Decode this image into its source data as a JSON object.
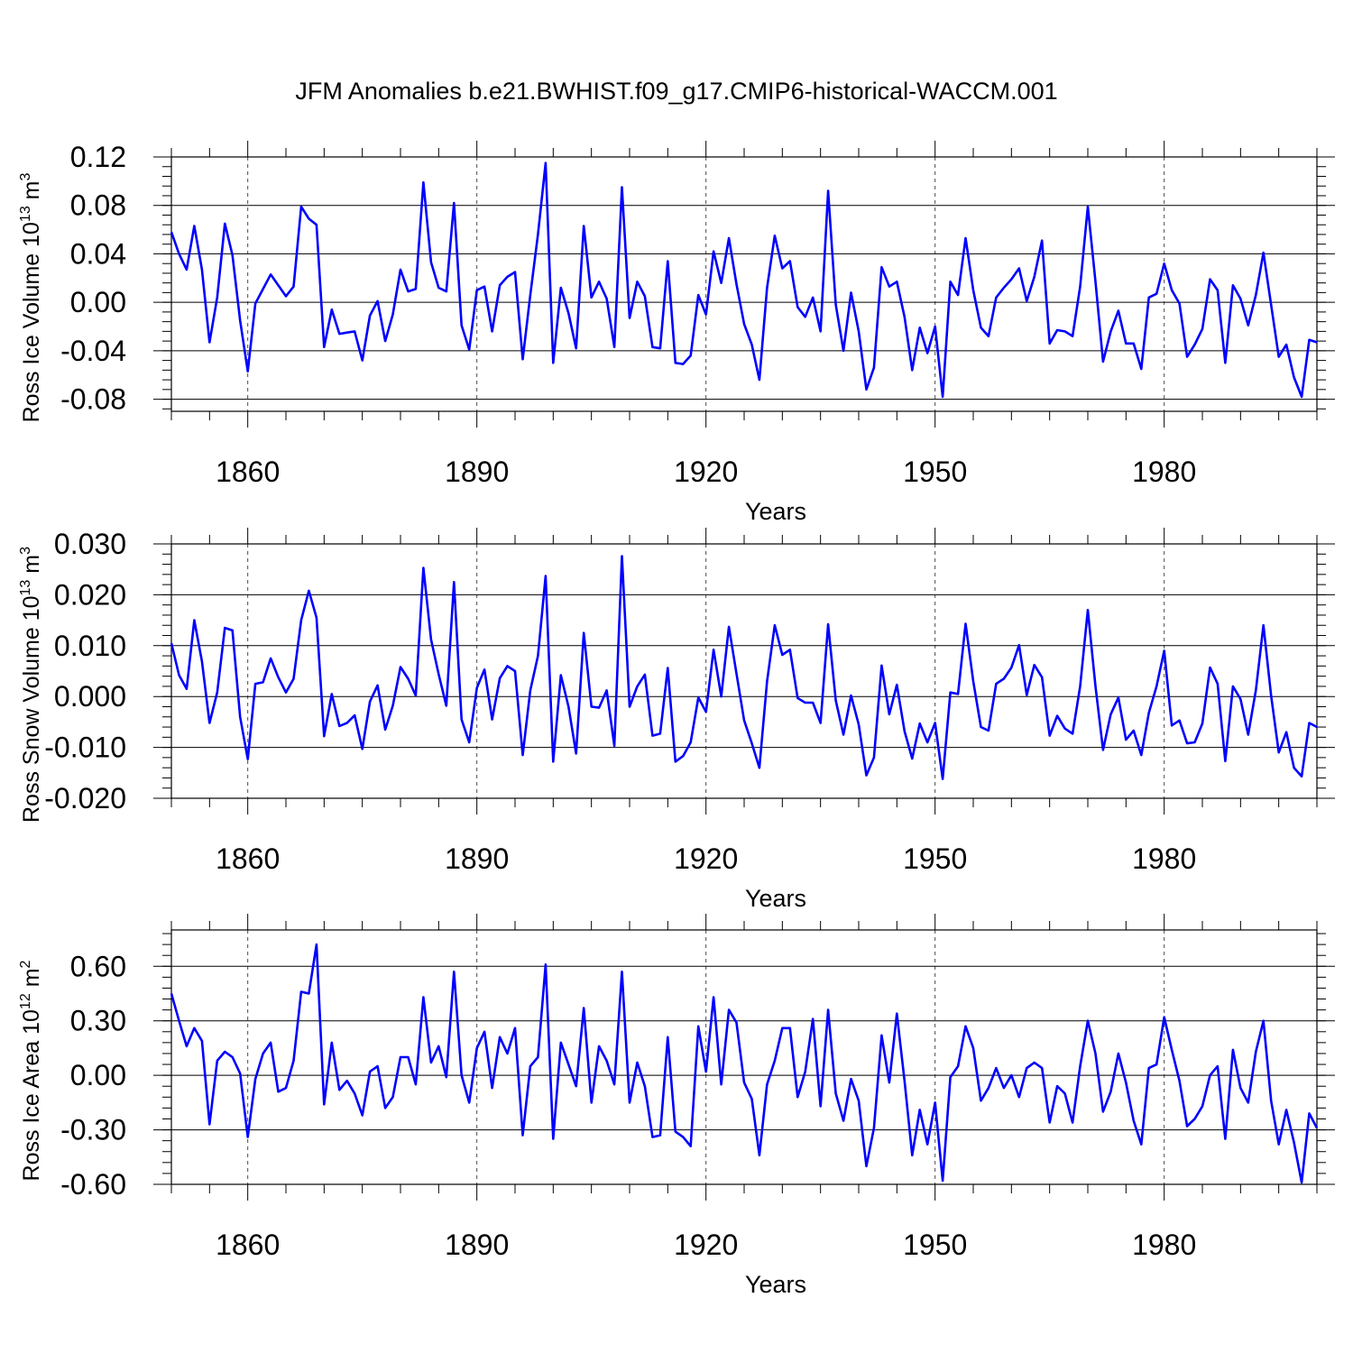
{
  "title": "JFM Anomalies b.e21.BWHIST.f09_g17.CMIP6-historical-WACCM.001",
  "colors": {
    "line": "#0000ff",
    "axis": "#000000",
    "grid": "#000000"
  },
  "chart_data": [
    {
      "type": "line",
      "name": "ice-volume",
      "ylabel_main": "Ross Ice Volume 10",
      "ylabel_exp": "13",
      "ylabel_unit": " m",
      "ylabel_unit_exp": "3",
      "xlabel": "Years",
      "xlim": [
        1850,
        2000
      ],
      "ylim": [
        -0.09,
        0.12
      ],
      "yticks": [
        -0.08,
        -0.04,
        0.0,
        0.04,
        0.08,
        0.12
      ],
      "ytick_labels": [
        "-0.08",
        "-0.04",
        "0.00",
        "0.04",
        "0.08",
        "0.12"
      ],
      "yminor_step": 0.008,
      "xticks": [
        1860,
        1890,
        1920,
        1950,
        1980
      ],
      "xtick_labels": [
        "1860",
        "1890",
        "1920",
        "1950",
        "1980"
      ],
      "start_year": 1850,
      "values": [
        0.058,
        0.04,
        0.027,
        0.063,
        0.027,
        -0.033,
        0.004,
        0.065,
        0.039,
        -0.015,
        -0.057,
        -0.001,
        0.011,
        0.023,
        0.014,
        0.005,
        0.013,
        0.079,
        0.069,
        0.064,
        -0.037,
        -0.006,
        -0.026,
        -0.025,
        -0.024,
        -0.048,
        -0.011,
        0.001,
        -0.032,
        -0.01,
        0.027,
        0.009,
        0.011,
        0.099,
        0.033,
        0.012,
        0.009,
        0.082,
        -0.019,
        -0.039,
        0.01,
        0.013,
        -0.024,
        0.014,
        0.021,
        0.025,
        -0.047,
        0.006,
        0.056,
        0.115,
        -0.05,
        0.012,
        -0.009,
        -0.038,
        0.063,
        0.004,
        0.017,
        0.003,
        -0.037,
        0.095,
        -0.013,
        0.017,
        0.005,
        -0.037,
        -0.038,
        0.034,
        -0.05,
        -0.051,
        -0.044,
        0.006,
        -0.01,
        0.042,
        0.016,
        0.053,
        0.015,
        -0.018,
        -0.035,
        -0.064,
        0.012,
        0.055,
        0.028,
        0.034,
        -0.004,
        -0.012,
        0.004,
        -0.024,
        0.092,
        -0.002,
        -0.04,
        0.008,
        -0.024,
        -0.072,
        -0.054,
        0.029,
        0.013,
        0.017,
        -0.012,
        -0.056,
        -0.021,
        -0.042,
        -0.02,
        -0.078,
        0.017,
        0.006,
        0.053,
        0.01,
        -0.021,
        -0.028,
        0.004,
        0.012,
        0.019,
        0.028,
        0.001,
        0.021,
        0.051,
        -0.034,
        -0.023,
        -0.024,
        -0.028,
        0.013,
        0.079,
        0.017,
        -0.049,
        -0.024,
        -0.007,
        -0.034,
        -0.034,
        -0.055,
        0.004,
        0.007,
        0.032,
        0.01,
        -0.001,
        -0.045,
        -0.035,
        -0.022,
        0.019,
        0.01,
        -0.05,
        0.014,
        0.003,
        -0.019,
        0.006,
        0.041,
        -0.002,
        -0.045,
        -0.035,
        -0.062,
        -0.078,
        -0.031,
        -0.033
      ]
    },
    {
      "type": "line",
      "name": "snow-volume",
      "ylabel_main": "Ross Snow Volume 10",
      "ylabel_exp": "13",
      "ylabel_unit": " m",
      "ylabel_unit_exp": "3",
      "xlabel": "Years",
      "xlim": [
        1850,
        2000
      ],
      "ylim": [
        -0.02,
        0.03
      ],
      "yticks": [
        -0.02,
        -0.01,
        0.0,
        0.01,
        0.02,
        0.03
      ],
      "ytick_labels": [
        "-0.020",
        "-0.010",
        "0.000",
        "0.010",
        "0.020",
        "0.030"
      ],
      "yminor_step": 0.002,
      "xticks": [
        1860,
        1890,
        1920,
        1950,
        1980
      ],
      "xtick_labels": [
        "1860",
        "1890",
        "1920",
        "1950",
        "1980"
      ],
      "start_year": 1850,
      "values": [
        0.0105,
        0.0042,
        0.0015,
        0.015,
        0.0069,
        -0.0052,
        0.0008,
        0.0135,
        0.013,
        -0.004,
        -0.0123,
        0.0025,
        0.0028,
        0.0075,
        0.0038,
        0.0008,
        0.0035,
        0.015,
        0.0208,
        0.0155,
        -0.0078,
        0.0005,
        -0.0058,
        -0.0052,
        -0.0037,
        -0.0103,
        -0.001,
        0.0022,
        -0.0065,
        -0.0018,
        0.0058,
        0.0035,
        0.0002,
        0.0253,
        0.0112,
        0.0044,
        -0.0018,
        0.0225,
        -0.0045,
        -0.009,
        0.0017,
        0.0053,
        -0.0045,
        0.0036,
        0.006,
        0.005,
        -0.0115,
        0.0012,
        0.008,
        0.0237,
        -0.0128,
        0.0042,
        -0.002,
        -0.0112,
        0.0125,
        -0.002,
        -0.0022,
        0.0012,
        -0.0097,
        0.0276,
        -0.002,
        0.002,
        0.0043,
        -0.0077,
        -0.0073,
        0.0056,
        -0.0128,
        -0.0117,
        -0.009,
        -0.0002,
        -0.003,
        0.0092,
        0.0,
        0.0137,
        0.0045,
        -0.0047,
        -0.0092,
        -0.014,
        0.003,
        0.014,
        0.0082,
        0.0092,
        -0.0003,
        -0.0012,
        -0.0012,
        -0.0052,
        0.0142,
        -0.0008,
        -0.0075,
        0.0002,
        -0.0055,
        -0.0155,
        -0.012,
        0.0061,
        -0.0035,
        0.0023,
        -0.0068,
        -0.0122,
        -0.0053,
        -0.009,
        -0.0052,
        -0.0162,
        0.0008,
        0.0005,
        0.0143,
        0.003,
        -0.006,
        -0.0067,
        0.0025,
        0.0035,
        0.0057,
        0.0101,
        0.0003,
        0.0062,
        0.0038,
        -0.0077,
        -0.0038,
        -0.0063,
        -0.0073,
        0.002,
        0.017,
        0.002,
        -0.0105,
        -0.0035,
        -0.0002,
        -0.0085,
        -0.0067,
        -0.0115,
        -0.0032,
        0.002,
        0.009,
        -0.0057,
        -0.0047,
        -0.0092,
        -0.009,
        -0.0053,
        0.0057,
        0.0025,
        -0.0127,
        0.002,
        -0.0005,
        -0.0075,
        0.0012,
        0.014,
        0.0002,
        -0.011,
        -0.007,
        -0.014,
        -0.0157,
        -0.0052,
        -0.006
      ]
    },
    {
      "type": "line",
      "name": "ice-area",
      "ylabel_main": "Ross Ice Area 10",
      "ylabel_exp": "12",
      "ylabel_unit": " m",
      "ylabel_unit_exp": "2",
      "xlabel": "Years",
      "xlim": [
        1850,
        2000
      ],
      "ylim": [
        -0.6,
        0.8
      ],
      "yticks": [
        -0.6,
        -0.3,
        0.0,
        0.3,
        0.6
      ],
      "ytick_labels": [
        "-0.60",
        "-0.30",
        "0.00",
        "0.30",
        "0.60"
      ],
      "yminor_step": 0.06,
      "xticks": [
        1860,
        1890,
        1920,
        1950,
        1980
      ],
      "xtick_labels": [
        "1860",
        "1890",
        "1920",
        "1950",
        "1980"
      ],
      "start_year": 1850,
      "values": [
        0.45,
        0.3,
        0.16,
        0.26,
        0.19,
        -0.27,
        0.08,
        0.13,
        0.1,
        0.01,
        -0.34,
        -0.02,
        0.12,
        0.18,
        -0.09,
        -0.07,
        0.08,
        0.46,
        0.45,
        0.72,
        -0.16,
        0.18,
        -0.08,
        -0.03,
        -0.1,
        -0.22,
        0.02,
        0.05,
        -0.18,
        -0.12,
        0.1,
        0.1,
        -0.05,
        0.43,
        0.07,
        0.16,
        -0.01,
        0.57,
        0.0,
        -0.15,
        0.15,
        0.24,
        -0.07,
        0.21,
        0.12,
        0.26,
        -0.33,
        0.05,
        0.1,
        0.61,
        -0.35,
        0.18,
        0.06,
        -0.06,
        0.37,
        -0.15,
        0.16,
        0.08,
        -0.05,
        0.57,
        -0.15,
        0.07,
        -0.06,
        -0.34,
        -0.33,
        0.21,
        -0.31,
        -0.34,
        -0.39,
        0.27,
        0.02,
        0.43,
        -0.05,
        0.36,
        0.29,
        -0.04,
        -0.13,
        -0.44,
        -0.05,
        0.08,
        0.26,
        0.26,
        -0.12,
        0.02,
        0.31,
        -0.17,
        0.36,
        -0.1,
        -0.25,
        -0.02,
        -0.14,
        -0.5,
        -0.29,
        0.22,
        -0.04,
        0.34,
        -0.03,
        -0.44,
        -0.19,
        -0.38,
        -0.15,
        -0.58,
        -0.01,
        0.05,
        0.27,
        0.15,
        -0.14,
        -0.07,
        0.04,
        -0.07,
        0.0,
        -0.12,
        0.04,
        0.07,
        0.04,
        -0.26,
        -0.06,
        -0.1,
        -0.26,
        0.05,
        0.3,
        0.12,
        -0.2,
        -0.09,
        0.12,
        -0.04,
        -0.25,
        -0.38,
        0.04,
        0.06,
        0.32,
        0.14,
        -0.03,
        -0.28,
        -0.24,
        -0.17,
        0.0,
        0.05,
        -0.35,
        0.14,
        -0.07,
        -0.15,
        0.13,
        0.3,
        -0.14,
        -0.38,
        -0.19,
        -0.37,
        -0.59,
        -0.21,
        -0.29
      ]
    }
  ]
}
